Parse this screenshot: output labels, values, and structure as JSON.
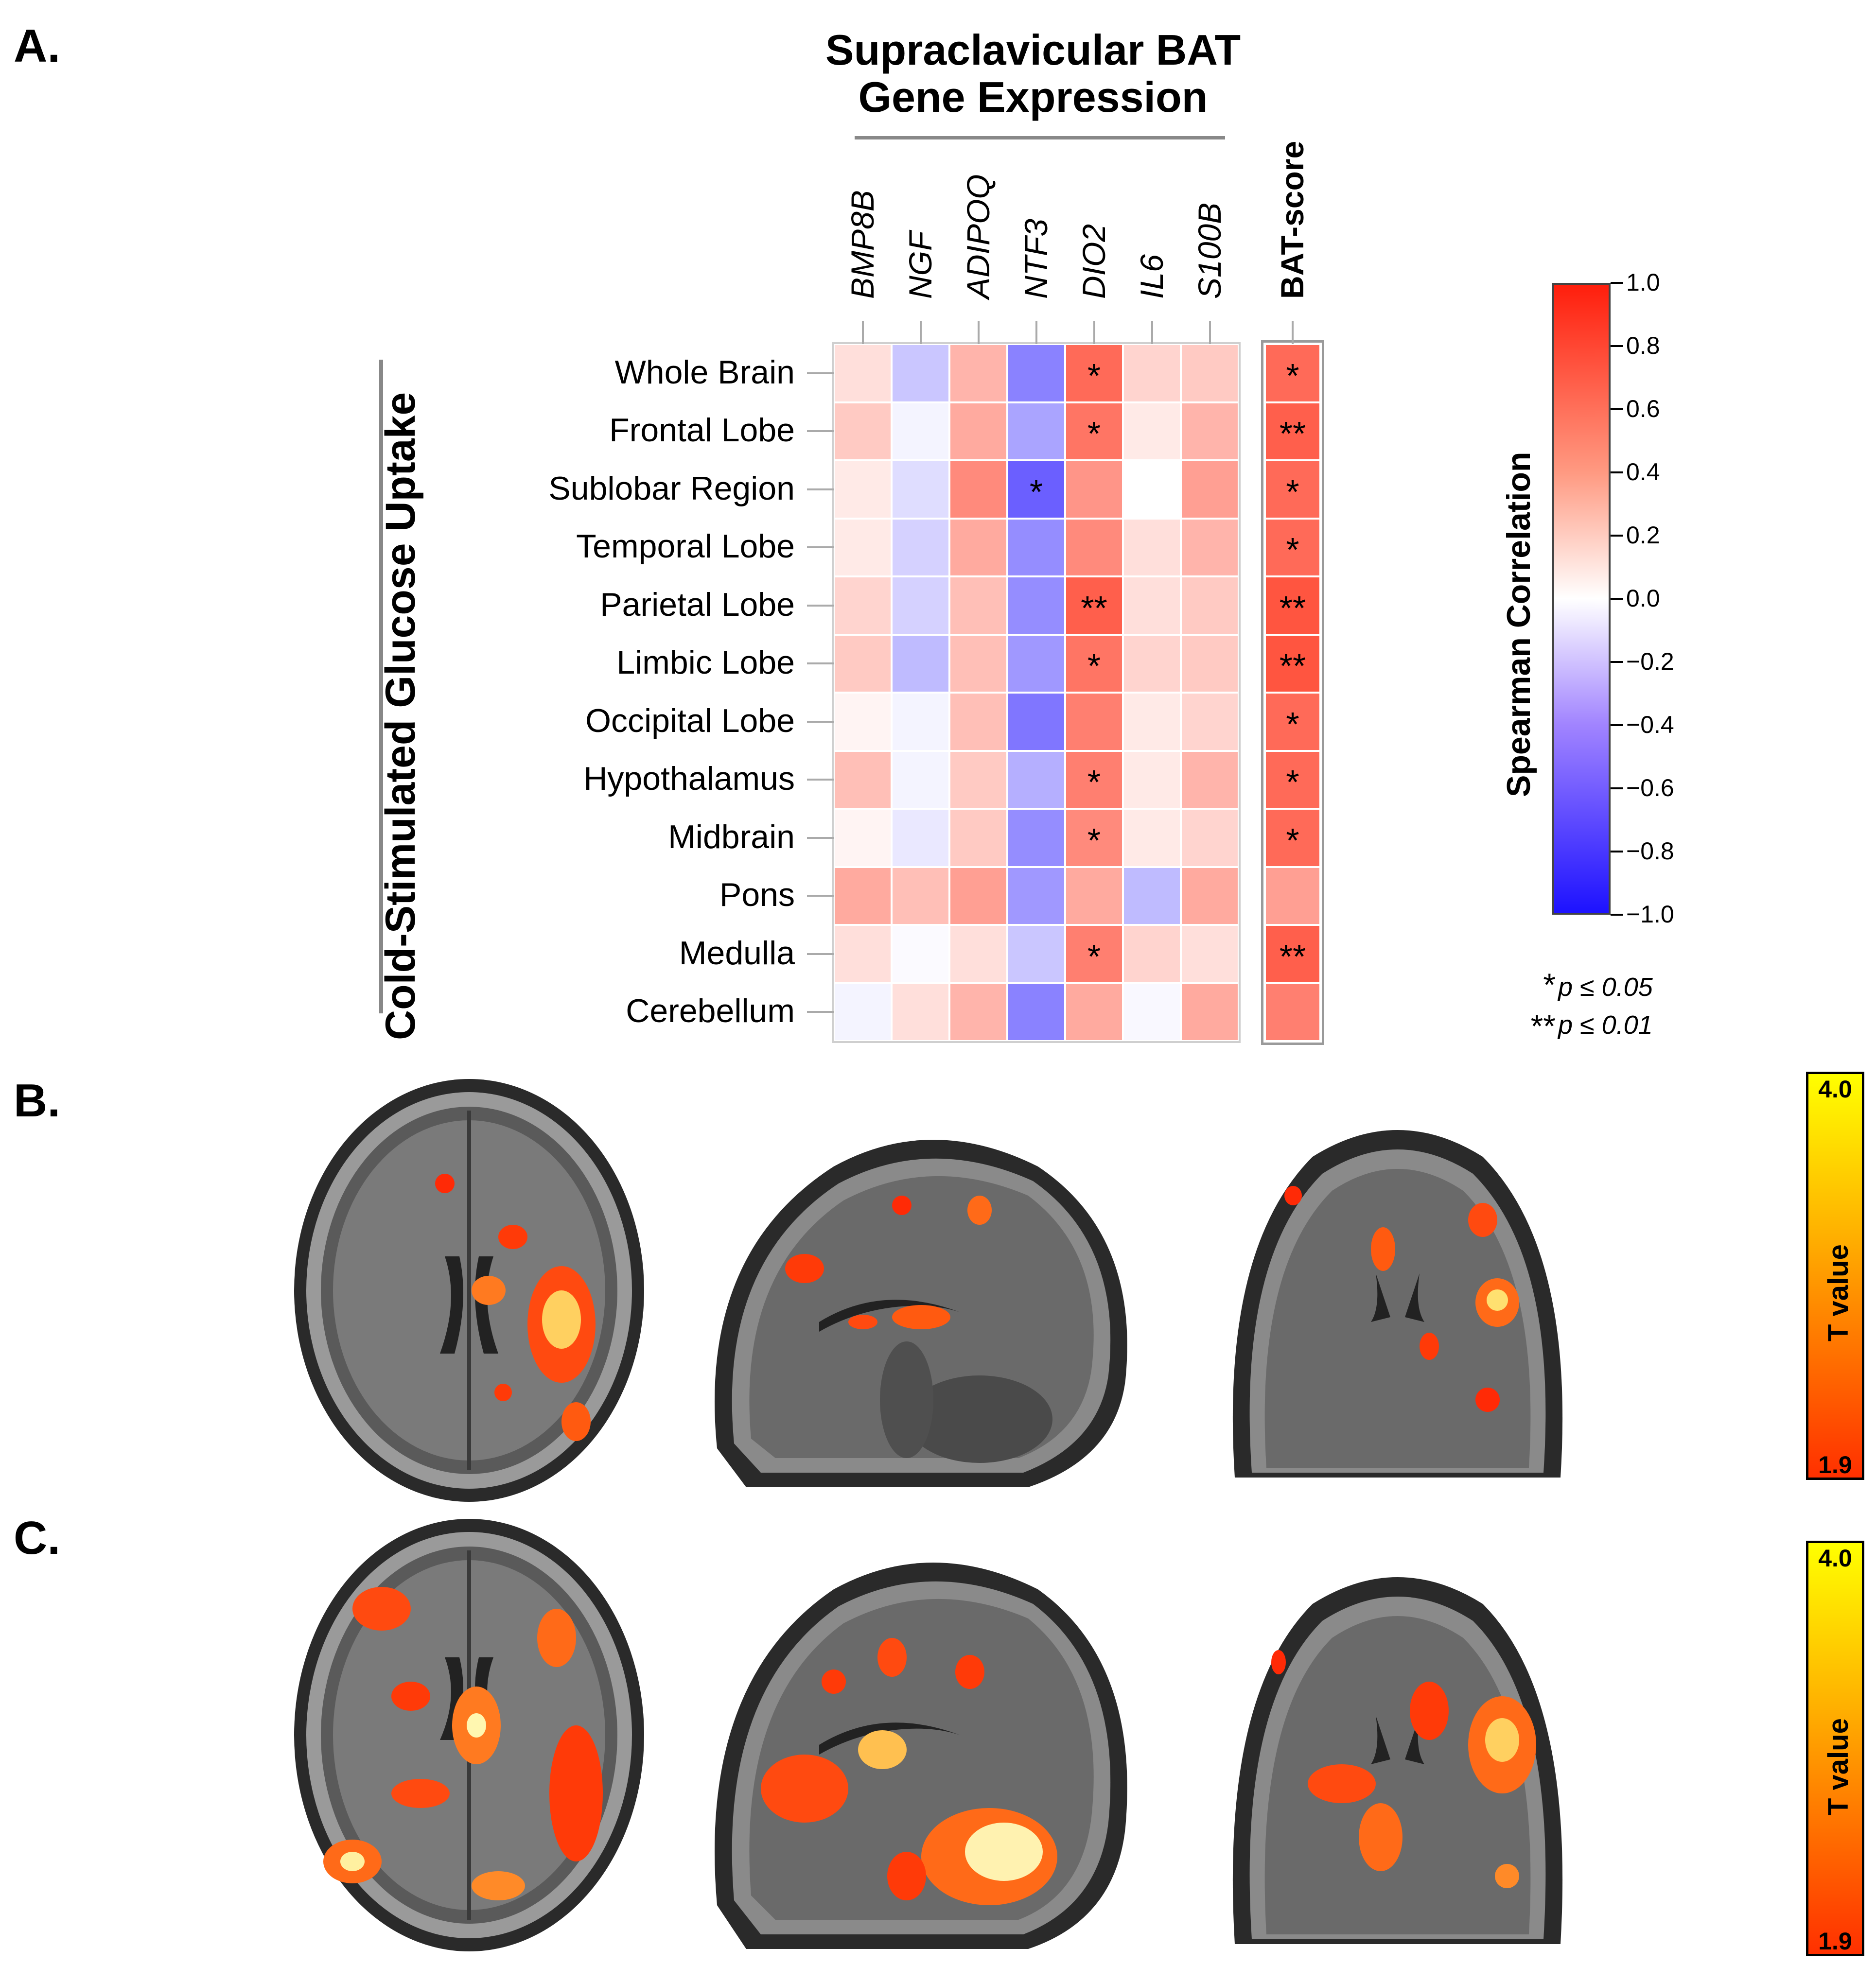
{
  "panels": {
    "a": "A.",
    "b": "B.",
    "c": "C."
  },
  "colors": {
    "negative": "#2b1bff",
    "neutral": "#ffffff",
    "positive": "#ff2a10",
    "axis": "#888888",
    "heat_low": "#ff1a00",
    "heat_high": "#ffff00"
  },
  "chart_data": [
    {
      "type": "heatmap",
      "title_line1": "Supraclavicular BAT",
      "title_line2": "Gene Expression",
      "ylabel": "Cold-Stimulated Glucose Uptake",
      "columns": [
        "BMP8B",
        "NGF",
        "ADIPOQ",
        "NTF3",
        "DIO2",
        "IL6",
        "S100B"
      ],
      "score_column": "BAT-score",
      "rows": [
        "Whole Brain",
        "Frontal Lobe",
        "Sublobar Region",
        "Temporal Lobe",
        "Parietal Lobe",
        "Limbic Lobe",
        "Occipital Lobe",
        "Hypothalamus",
        "Midbrain",
        "Pons",
        "Medulla",
        "Cerebellum"
      ],
      "values": [
        [
          0.15,
          -0.25,
          0.35,
          -0.55,
          0.7,
          0.2,
          0.25
        ],
        [
          0.25,
          -0.05,
          0.4,
          -0.4,
          0.65,
          0.1,
          0.35
        ],
        [
          0.1,
          -0.15,
          0.55,
          -0.7,
          0.5,
          0.0,
          0.45
        ],
        [
          0.1,
          -0.2,
          0.4,
          -0.5,
          0.55,
          0.15,
          0.35
        ],
        [
          0.2,
          -0.2,
          0.3,
          -0.5,
          0.75,
          0.15,
          0.25
        ],
        [
          0.25,
          -0.3,
          0.3,
          -0.45,
          0.65,
          0.2,
          0.25
        ],
        [
          0.05,
          -0.05,
          0.3,
          -0.6,
          0.6,
          0.1,
          0.2
        ],
        [
          0.3,
          -0.05,
          0.25,
          -0.35,
          0.6,
          0.1,
          0.35
        ],
        [
          0.05,
          -0.1,
          0.25,
          -0.5,
          0.55,
          0.1,
          0.2
        ],
        [
          0.4,
          0.3,
          0.45,
          -0.45,
          0.4,
          -0.3,
          0.4
        ],
        [
          0.15,
          -0.02,
          0.15,
          -0.25,
          0.6,
          0.2,
          0.15
        ],
        [
          -0.05,
          0.15,
          0.35,
          -0.55,
          0.4,
          -0.03,
          0.4
        ]
      ],
      "score_values": [
        0.7,
        0.75,
        0.7,
        0.7,
        0.8,
        0.8,
        0.7,
        0.7,
        0.7,
        0.45,
        0.75,
        0.6
      ],
      "significance": [
        [
          "",
          "",
          "",
          "",
          "*",
          "",
          ""
        ],
        [
          "",
          "",
          "",
          "",
          "*",
          "",
          ""
        ],
        [
          "",
          "",
          "",
          "*",
          "",
          "",
          ""
        ],
        [
          "",
          "",
          "",
          "",
          "",
          "",
          ""
        ],
        [
          "",
          "",
          "",
          "",
          "**",
          "",
          ""
        ],
        [
          "",
          "",
          "",
          "",
          "*",
          "",
          ""
        ],
        [
          "",
          "",
          "",
          "",
          "",
          "",
          ""
        ],
        [
          "",
          "",
          "",
          "",
          "*",
          "",
          ""
        ],
        [
          "",
          "",
          "",
          "",
          "*",
          "",
          ""
        ],
        [
          "",
          "",
          "",
          "",
          "",
          "",
          ""
        ],
        [
          "",
          "",
          "",
          "",
          "*",
          "",
          ""
        ],
        [
          "",
          "",
          "",
          "",
          "",
          "",
          ""
        ]
      ],
      "score_significance": [
        "*",
        "**",
        "*",
        "*",
        "**",
        "**",
        "*",
        "*",
        "*",
        "",
        "**",
        ""
      ],
      "colorbar": {
        "label": "Spearman Correlation",
        "range": [
          -1.0,
          1.0
        ],
        "ticks": [
          "1.0",
          "0.8",
          "0.6",
          "0.4",
          "0.2",
          "0.0",
          "−0.2",
          "−0.4",
          "−0.6",
          "−0.8",
          "−1.0"
        ]
      },
      "legend": [
        {
          "mark": "*",
          "text": "p ≤ 0.05"
        },
        {
          "mark": "**",
          "text": "p ≤ 0.01"
        }
      ]
    }
  ],
  "tmaps": [
    {
      "panel": "B.",
      "max": "4.0",
      "min": "1.9",
      "label": "T value"
    },
    {
      "panel": "C.",
      "max": "4.0",
      "min": "1.9",
      "label": "T value"
    }
  ]
}
